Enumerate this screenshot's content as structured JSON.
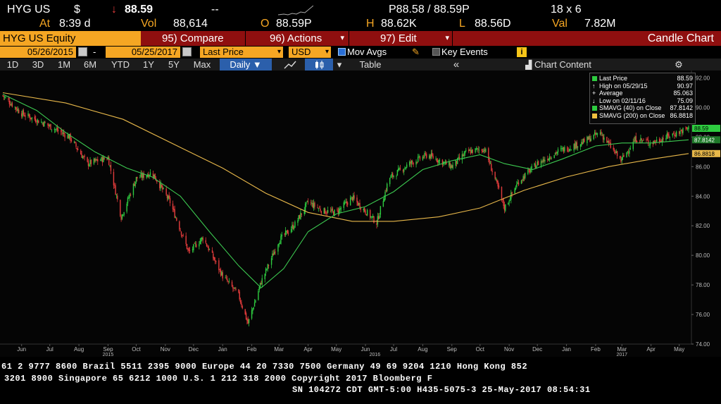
{
  "quote": {
    "ticker": "HYG US",
    "currency_symbol": "$",
    "direction_arrow": "↓",
    "last_price": "88.59",
    "change": "--",
    "time_label": "At",
    "time": "8:39 d",
    "volume_label": "Vol",
    "volume": "88,614",
    "open_label": "O",
    "open": "88.59P",
    "high_label": "H",
    "high": "88.62K",
    "low_label": "L",
    "low": "88.56D",
    "bid_ask": "P88.58 / 88.59P",
    "size": "18 x 6",
    "value_label": "Val",
    "value": "7.82M"
  },
  "command_bar": {
    "security": "HYG US Equity",
    "compare": "95) Compare",
    "actions": "96) Actions",
    "edit": "97) Edit",
    "chart_type": "Candle Chart",
    "dropdown_arrow": "▾"
  },
  "settings": {
    "start_date": "05/26/2015",
    "separator": "-",
    "end_date": "05/25/2017",
    "field": "Last Price",
    "currency": "USD",
    "mov_avgs": "Mov Avgs",
    "key_events": "Key Events",
    "info_icon_glyph": "i"
  },
  "period_buttons": [
    "1D",
    "3D",
    "1M",
    "6M",
    "YTD",
    "1Y",
    "5Y",
    "Max"
  ],
  "period_selected": "Daily ▼",
  "toolbar": {
    "table": "Table",
    "back_glyph": "«",
    "chart_content": "Chart Content",
    "gear_glyph": "⚙"
  },
  "legend": [
    {
      "label": "Last Price",
      "value": "88.59",
      "marker": "swatch",
      "color": "#2ecc40"
    },
    {
      "label": "High on 05/29/15",
      "value": "90.97",
      "marker": "↑",
      "color": "#ffffff"
    },
    {
      "label": "Average",
      "value": "85.063",
      "marker": "+",
      "color": "#ffffff"
    },
    {
      "label": "Low on 02/11/16",
      "value": "75.09",
      "marker": "↓",
      "color": "#ffffff"
    },
    {
      "label": "SMAVG (40) on Close",
      "value": "87.8142",
      "marker": "swatch",
      "color": "#2ecc40"
    },
    {
      "label": "SMAVG (200) on Close",
      "value": "86.8818",
      "marker": "swatch",
      "color": "#f0c040"
    }
  ],
  "footer": {
    "line1": "61 2 9777 8600 Brazil 5511 2395 9000 Europe 44 20 7330 7500 Germany 49 69 9204 1210 Hong Kong 852",
    "line2": "3201 8900 Singapore 65 6212 1000 U.S. 1 212 318 2000 Copyright 2017 Bloomberg F",
    "line3": "SN 104272 CDT GMT-5:00 H435-5075-3 25-May-2017 08:54:31"
  },
  "colors": {
    "up": "#2ecc40",
    "down": "#e43c3c",
    "sma40": "#3cc850",
    "sma200": "#e8b84a",
    "bloomberg_orange": "#f5a623",
    "bloomberg_red": "#8f0f0f"
  },
  "chart_data": {
    "type": "candlestick",
    "title": "",
    "ylim": [
      74,
      92.5
    ],
    "y_ticks": [
      "92.00",
      "90.00",
      "88.00",
      "86.00",
      "84.00",
      "82.00",
      "80.00",
      "78.00",
      "76.00",
      "74.00"
    ],
    "x_ticks": [
      "Jun",
      "Jul",
      "Aug",
      "Sep",
      "Oct",
      "Nov",
      "Dec",
      "Jan",
      "Feb",
      "Mar",
      "Apr",
      "May",
      "Jun",
      "Jul",
      "Aug",
      "Sep",
      "Oct",
      "Nov",
      "Dec",
      "Jan",
      "Feb",
      "Mar",
      "Apr",
      "May"
    ],
    "year_labels": [
      "2015",
      "2016",
      "2017"
    ],
    "price_path": [
      {
        "date": "2015-05-26",
        "close": 90.8
      },
      {
        "date": "2015-06-15",
        "close": 89.6
      },
      {
        "date": "2015-07-10",
        "close": 88.9
      },
      {
        "date": "2015-08-05",
        "close": 88.0
      },
      {
        "date": "2015-08-24",
        "close": 86.2
      },
      {
        "date": "2015-09-15",
        "close": 86.6
      },
      {
        "date": "2015-09-29",
        "close": 82.6
      },
      {
        "date": "2015-10-15",
        "close": 85.2
      },
      {
        "date": "2015-11-01",
        "close": 85.6
      },
      {
        "date": "2015-11-20",
        "close": 83.6
      },
      {
        "date": "2015-12-10",
        "close": 80.2
      },
      {
        "date": "2015-12-25",
        "close": 81.2
      },
      {
        "date": "2016-01-15",
        "close": 78.6
      },
      {
        "date": "2016-02-01",
        "close": 77.3
      },
      {
        "date": "2016-02-11",
        "close": 75.4
      },
      {
        "date": "2016-02-25",
        "close": 78.2
      },
      {
        "date": "2016-03-15",
        "close": 81.0
      },
      {
        "date": "2016-04-01",
        "close": 82.1
      },
      {
        "date": "2016-04-15",
        "close": 83.6
      },
      {
        "date": "2016-05-01",
        "close": 83.0
      },
      {
        "date": "2016-05-15",
        "close": 82.9
      },
      {
        "date": "2016-06-01",
        "close": 83.9
      },
      {
        "date": "2016-06-27",
        "close": 82.2
      },
      {
        "date": "2016-07-10",
        "close": 85.2
      },
      {
        "date": "2016-08-01",
        "close": 86.2
      },
      {
        "date": "2016-08-20",
        "close": 86.8
      },
      {
        "date": "2016-09-15",
        "close": 86.0
      },
      {
        "date": "2016-10-01",
        "close": 87.0
      },
      {
        "date": "2016-10-20",
        "close": 87.2
      },
      {
        "date": "2016-11-04",
        "close": 84.4
      },
      {
        "date": "2016-11-10",
        "close": 83.2
      },
      {
        "date": "2016-11-25",
        "close": 85.0
      },
      {
        "date": "2016-12-15",
        "close": 86.2
      },
      {
        "date": "2017-01-05",
        "close": 87.0
      },
      {
        "date": "2017-01-31",
        "close": 87.6
      },
      {
        "date": "2017-02-20",
        "close": 88.3
      },
      {
        "date": "2017-03-14",
        "close": 86.4
      },
      {
        "date": "2017-03-30",
        "close": 87.9
      },
      {
        "date": "2017-04-15",
        "close": 87.6
      },
      {
        "date": "2017-05-01",
        "close": 88.0
      },
      {
        "date": "2017-05-25",
        "close": 88.59
      }
    ],
    "sma40": [
      {
        "date": "2015-05-26",
        "value": 90.9
      },
      {
        "date": "2015-07-01",
        "value": 89.8
      },
      {
        "date": "2015-08-01",
        "value": 88.3
      },
      {
        "date": "2015-09-01",
        "value": 87.0
      },
      {
        "date": "2015-10-05",
        "value": 85.9
      },
      {
        "date": "2015-11-01",
        "value": 85.3
      },
      {
        "date": "2015-12-01",
        "value": 84.0
      },
      {
        "date": "2016-01-01",
        "value": 81.6
      },
      {
        "date": "2016-02-01",
        "value": 79.3
      },
      {
        "date": "2016-02-25",
        "value": 77.8
      },
      {
        "date": "2016-03-20",
        "value": 79.1
      },
      {
        "date": "2016-04-15",
        "value": 81.6
      },
      {
        "date": "2016-05-15",
        "value": 82.8
      },
      {
        "date": "2016-06-15",
        "value": 83.3
      },
      {
        "date": "2016-07-15",
        "value": 84.3
      },
      {
        "date": "2016-08-15",
        "value": 85.8
      },
      {
        "date": "2016-09-15",
        "value": 86.4
      },
      {
        "date": "2016-10-15",
        "value": 86.8
      },
      {
        "date": "2016-11-10",
        "value": 86.2
      },
      {
        "date": "2016-12-10",
        "value": 85.8
      },
      {
        "date": "2017-01-10",
        "value": 86.5
      },
      {
        "date": "2017-02-15",
        "value": 87.4
      },
      {
        "date": "2017-03-15",
        "value": 87.6
      },
      {
        "date": "2017-04-15",
        "value": 87.6
      },
      {
        "date": "2017-05-25",
        "value": 87.8142
      }
    ],
    "sma200": [
      {
        "date": "2015-05-26",
        "value": 91.0
      },
      {
        "date": "2015-08-01",
        "value": 90.3
      },
      {
        "date": "2015-10-01",
        "value": 89.2
      },
      {
        "date": "2015-12-01",
        "value": 87.3
      },
      {
        "date": "2016-01-15",
        "value": 85.9
      },
      {
        "date": "2016-03-01",
        "value": 84.2
      },
      {
        "date": "2016-04-15",
        "value": 82.9
      },
      {
        "date": "2016-06-01",
        "value": 82.3
      },
      {
        "date": "2016-07-15",
        "value": 82.3
      },
      {
        "date": "2016-09-01",
        "value": 82.6
      },
      {
        "date": "2016-10-15",
        "value": 83.2
      },
      {
        "date": "2016-12-01",
        "value": 84.4
      },
      {
        "date": "2017-01-15",
        "value": 85.3
      },
      {
        "date": "2017-03-01",
        "value": 86.0
      },
      {
        "date": "2017-04-15",
        "value": 86.5
      },
      {
        "date": "2017-05-25",
        "value": 86.8818
      }
    ],
    "last_price_tag": "88.59",
    "sma40_tag": "87.8142",
    "sma200_tag": "86.8818"
  }
}
